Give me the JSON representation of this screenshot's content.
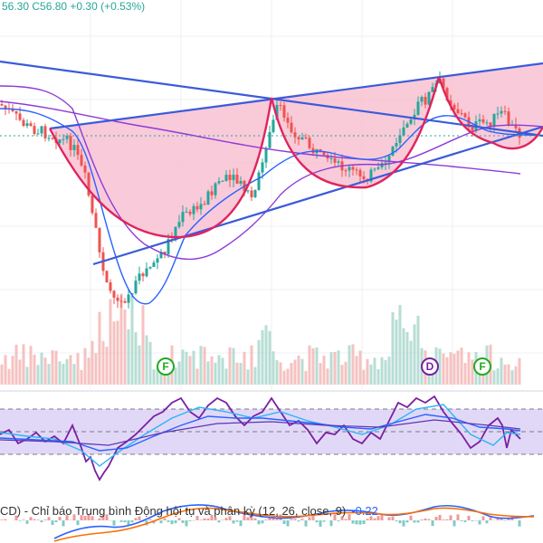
{
  "header": {
    "ohlc_text": "56.30 C56.80 +0.30 (+0.53%)"
  },
  "markers": [
    {
      "label": "F",
      "color": "#22ab22"
    },
    {
      "label": "D",
      "color": "#7b1fa2"
    },
    {
      "label": "F",
      "color": "#22ab22"
    }
  ],
  "macd": {
    "label": "CD) - Chỉ báo Trung bình Động hội tụ và phân kỳ (12, 26, close, 9)",
    "value": "-0.22"
  },
  "chart_data": {
    "type": "candlestick",
    "colors": {
      "up": "#26a69a",
      "down": "#ef5350",
      "trendline": "#3b5bdb",
      "pattern": "#e0245e",
      "pattern_fill": "#f8c1d2",
      "ma": "#8e3bd6",
      "fast": "#2962ff",
      "rsi_band": "#c9b8f0"
    },
    "close_level": 56.8,
    "indicators": [
      "RSI",
      "MACD (12, 26, close, 9)"
    ],
    "annotations": [
      "cup and handle pattern",
      "ascending resistance",
      "descending trendline",
      "rising support"
    ]
  }
}
